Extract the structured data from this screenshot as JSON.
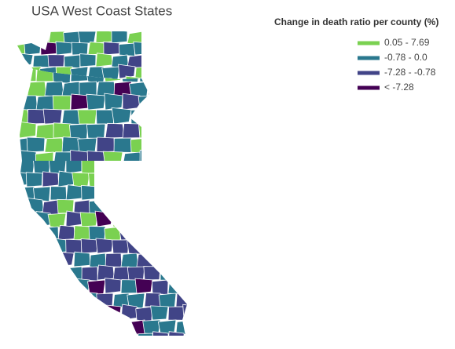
{
  "title": "USA West Coast States",
  "legend": {
    "title": "Change in death ratio per county (%)",
    "items": [
      {
        "label": "0.05 - 7.69",
        "color": "#7ad151"
      },
      {
        "label": "-0.78 - 0.0",
        "color": "#2a788e"
      },
      {
        "label": "-7.28 - -0.78",
        "color": "#414487"
      },
      {
        "label": "< -7.28",
        "color": "#440154"
      }
    ]
  }
}
